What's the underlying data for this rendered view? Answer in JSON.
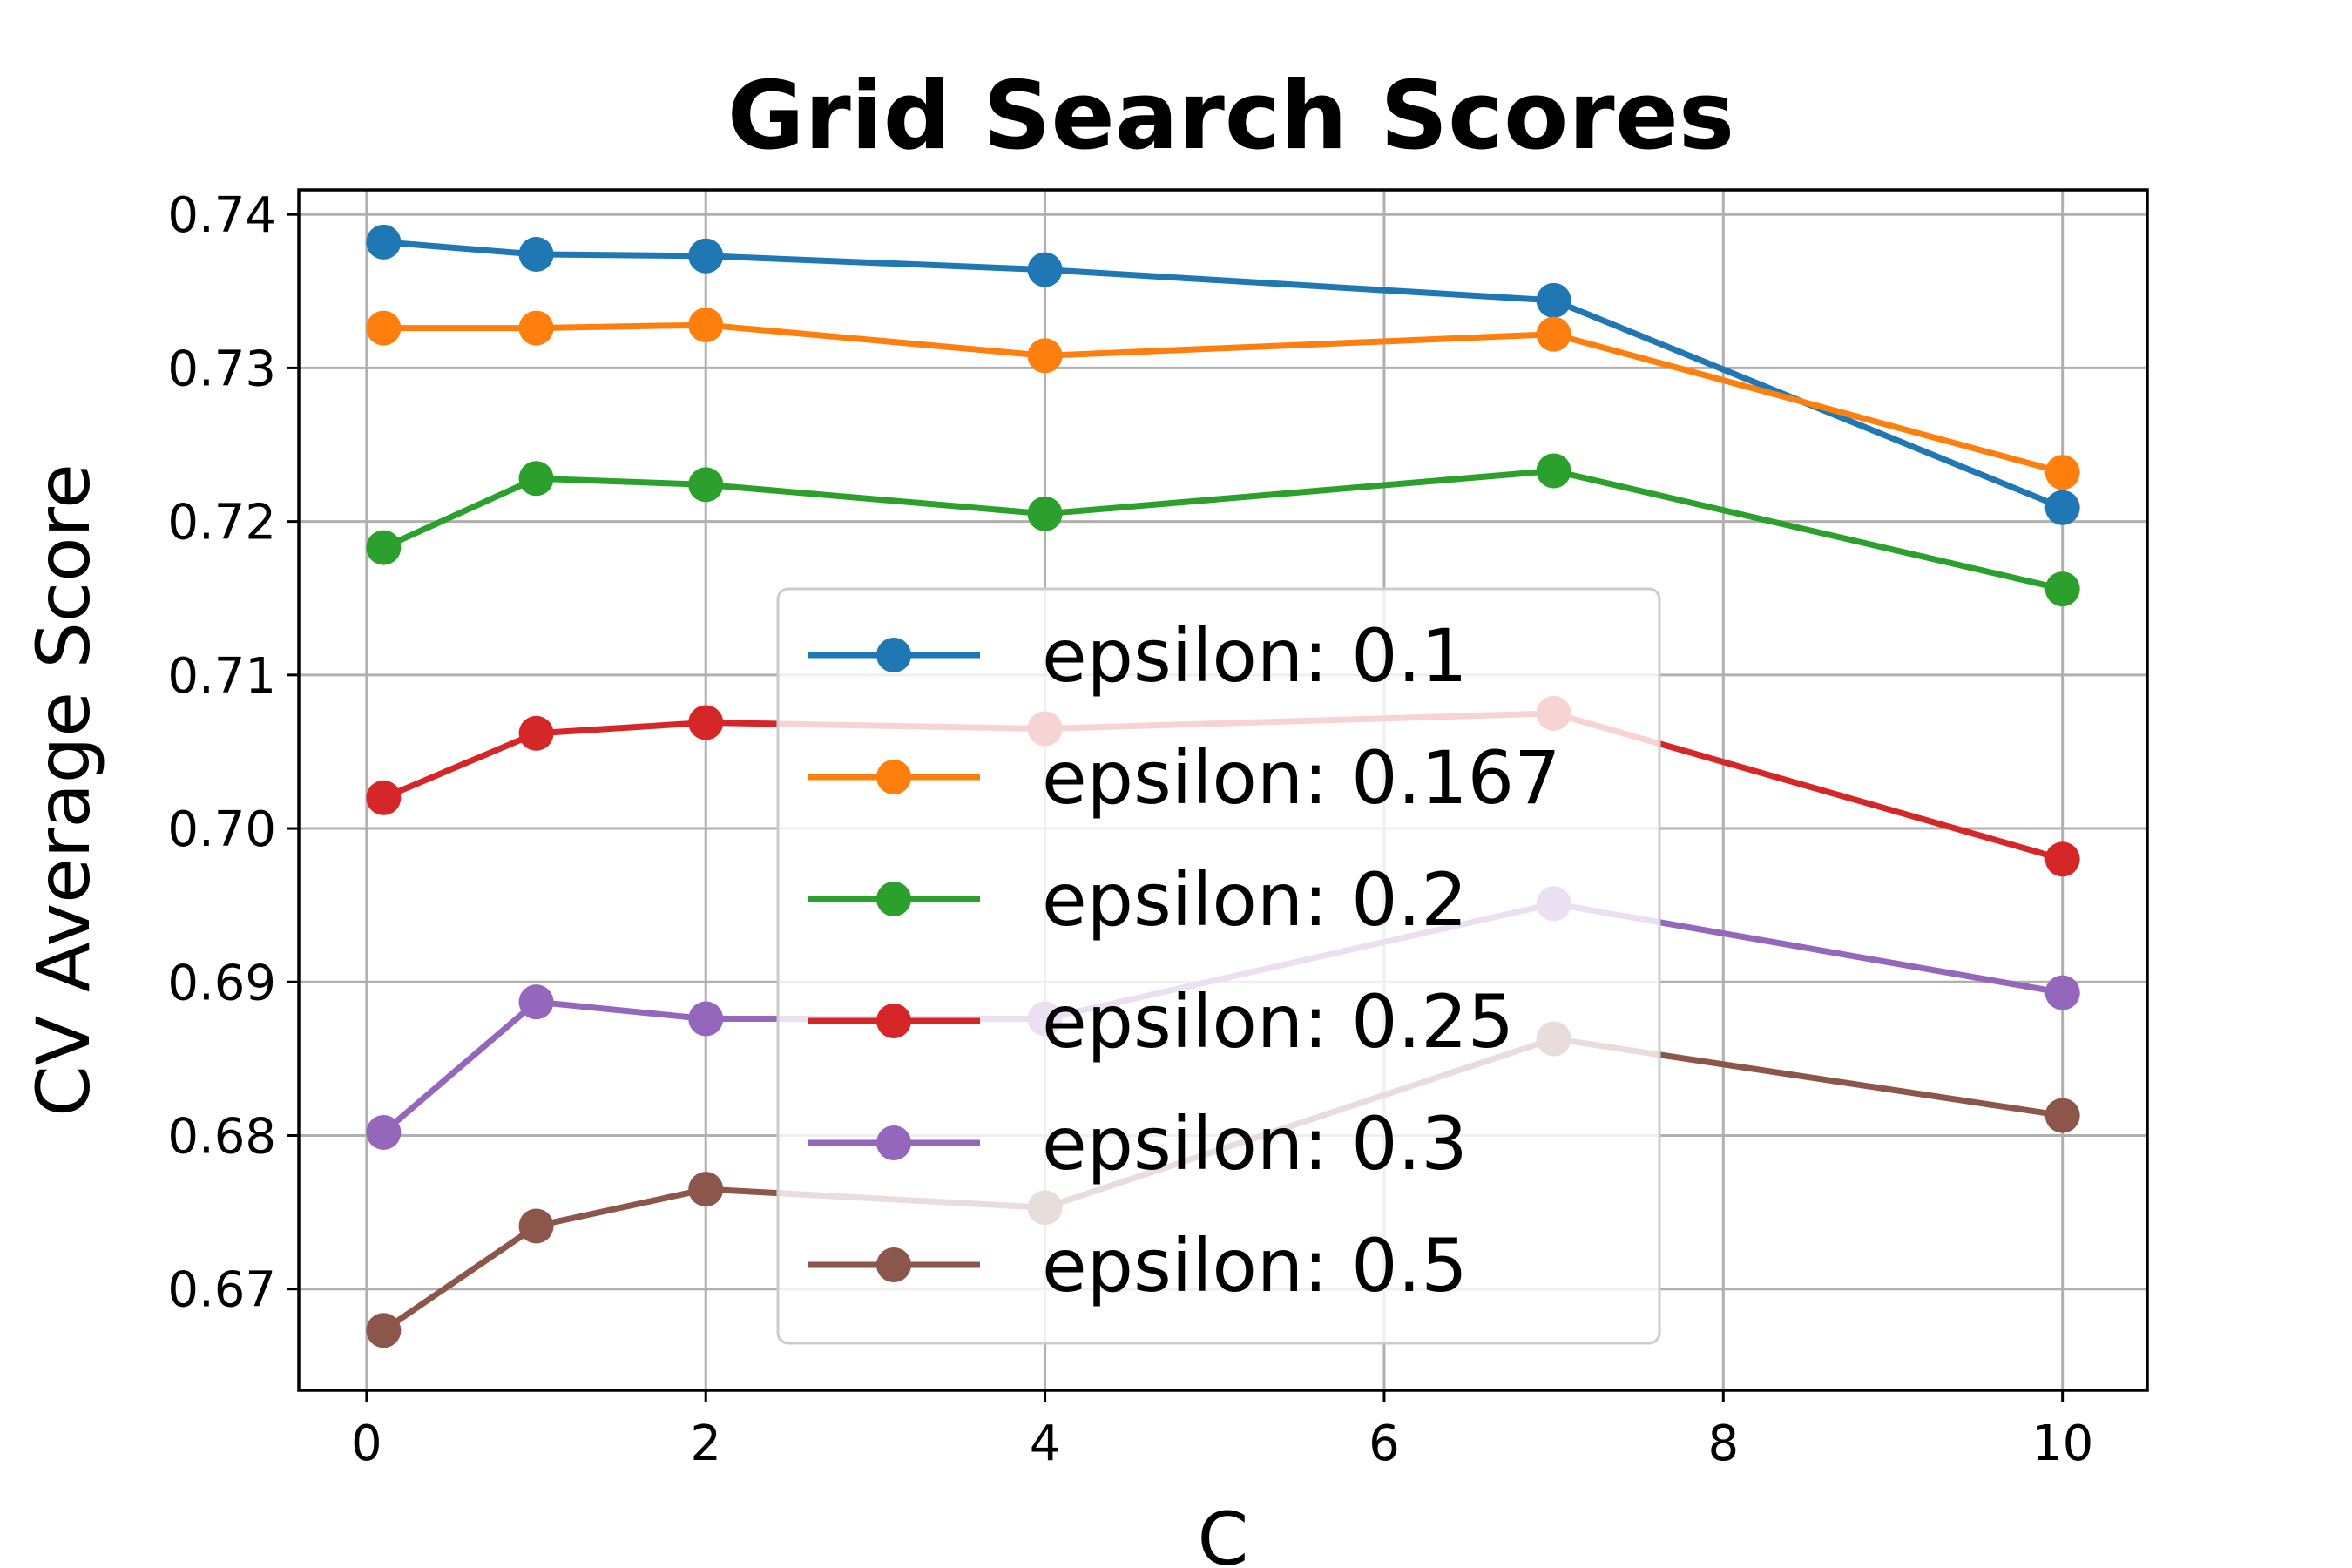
{
  "chart_data": {
    "type": "line",
    "title": "Grid Search Scores",
    "xlabel": "C",
    "ylabel": "CV Average Score",
    "x": [
      0.1,
      1,
      2,
      4,
      7,
      10
    ],
    "xlim": [
      -0.4,
      10.5
    ],
    "ylim": [
      0.6634,
      0.7416
    ],
    "xticks": [
      0,
      2,
      4,
      6,
      8,
      10
    ],
    "xtick_labels": [
      "0",
      "2",
      "4",
      "6",
      "8",
      "10"
    ],
    "yticks": [
      0.67,
      0.68,
      0.69,
      0.7,
      0.71,
      0.72,
      0.73,
      0.74
    ],
    "ytick_labels": [
      "0.67",
      "0.68",
      "0.69",
      "0.70",
      "0.71",
      "0.72",
      "0.73",
      "0.74"
    ],
    "grid": true,
    "legend_position": "center",
    "series": [
      {
        "name": "epsilon: 0.1",
        "color": "#1f77b4",
        "values": [
          0.7382,
          0.7374,
          0.7373,
          0.7364,
          0.7344,
          0.7209
        ]
      },
      {
        "name": "epsilon: 0.167",
        "color": "#ff7f0e",
        "values": [
          0.7326,
          0.7326,
          0.7328,
          0.7308,
          0.7322,
          0.7232
        ]
      },
      {
        "name": "epsilon: 0.2",
        "color": "#2ca02c",
        "values": [
          0.7183,
          0.7228,
          0.7224,
          0.7205,
          0.7233,
          0.7156
        ]
      },
      {
        "name": "epsilon: 0.25",
        "color": "#d62728",
        "values": [
          0.702,
          0.7062,
          0.7069,
          0.7065,
          0.7075,
          0.698
        ]
      },
      {
        "name": "epsilon: 0.3",
        "color": "#9467bd",
        "values": [
          0.6802,
          0.6887,
          0.6876,
          0.6876,
          0.6951,
          0.6893
        ]
      },
      {
        "name": "epsilon: 0.5",
        "color": "#8c564b",
        "values": [
          0.6673,
          0.6741,
          0.6765,
          0.6753,
          0.6863,
          0.6813
        ]
      }
    ]
  }
}
